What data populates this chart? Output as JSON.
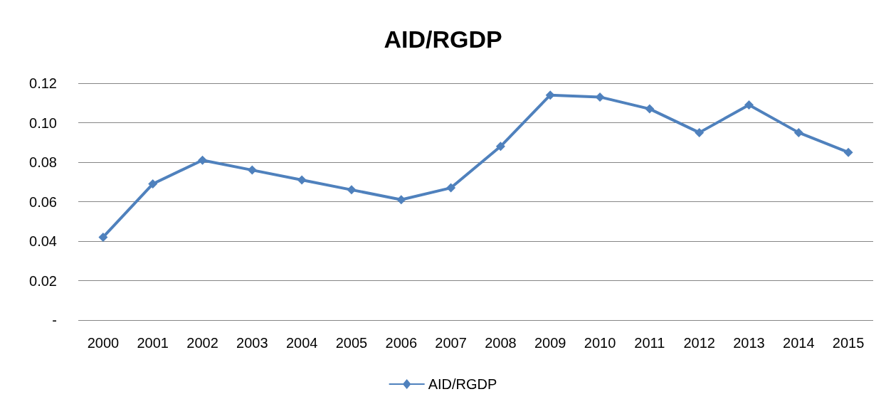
{
  "chart_data": {
    "type": "line",
    "title": "AID/RGDP",
    "categories": [
      "2000",
      "2001",
      "2002",
      "2003",
      "2004",
      "2005",
      "2006",
      "2007",
      "2008",
      "2009",
      "2010",
      "2011",
      "2012",
      "2013",
      "2014",
      "2015"
    ],
    "series": [
      {
        "name": "AID/RGDP",
        "color": "#4f81bd",
        "values": [
          0.042,
          0.069,
          0.081,
          0.076,
          0.071,
          0.066,
          0.061,
          0.067,
          0.088,
          0.114,
          0.113,
          0.107,
          0.095,
          0.109,
          0.095,
          0.085
        ]
      }
    ],
    "ylim": [
      0,
      0.12
    ],
    "yticks": [
      {
        "value": 0,
        "label": "-"
      },
      {
        "value": 0.02,
        "label": "0.02"
      },
      {
        "value": 0.04,
        "label": "0.04"
      },
      {
        "value": 0.06,
        "label": "0.06"
      },
      {
        "value": 0.08,
        "label": "0.08"
      },
      {
        "value": 0.1,
        "label": "0.10"
      },
      {
        "value": 0.12,
        "label": "0.12"
      }
    ],
    "grid": "y",
    "legend": "bottom",
    "marker": "diamond",
    "line_style": "solid"
  }
}
